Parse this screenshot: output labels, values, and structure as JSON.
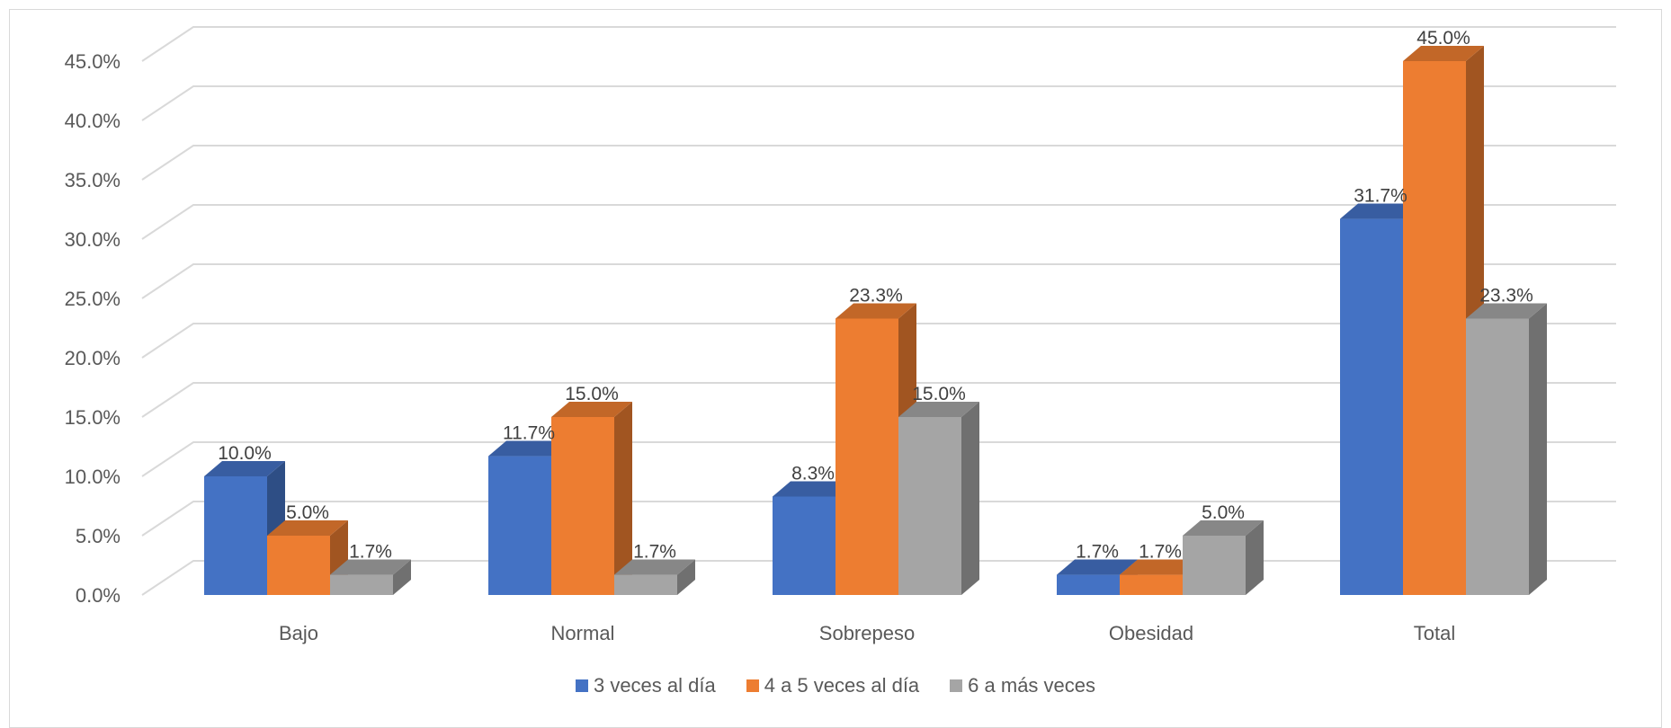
{
  "chart_data": {
    "type": "bar",
    "style": "3d-clustered-column",
    "title": "",
    "xlabel": "",
    "ylabel": "",
    "categories": [
      "Bajo",
      "Normal",
      "Sobrepeso",
      "Obesidad",
      "Total"
    ],
    "series": [
      {
        "name": "3 veces al día",
        "color": "#4472C4",
        "values": [
          10.0,
          11.7,
          8.3,
          1.7,
          31.7
        ],
        "labels": [
          "10.0%",
          "11.7%",
          "8.3%",
          "1.7%",
          "31.7%"
        ]
      },
      {
        "name": "4 a 5 veces al día",
        "color": "#ED7D31",
        "values": [
          5.0,
          15.0,
          23.3,
          1.7,
          45.0
        ],
        "labels": [
          "5.0%",
          "15.0%",
          "23.3%",
          "1.7%",
          "45.0%"
        ]
      },
      {
        "name": "6 a más veces",
        "color": "#A5A5A5",
        "values": [
          1.7,
          1.7,
          15.0,
          5.0,
          23.3
        ],
        "labels": [
          "1.7%",
          "1.7%",
          "15.0%",
          "5.0%",
          "23.3%"
        ]
      }
    ],
    "yticks": [
      "0.0%",
      "5.0%",
      "10.0%",
      "15.0%",
      "20.0%",
      "25.0%",
      "30.0%",
      "35.0%",
      "40.0%",
      "45.0%"
    ],
    "ylim": [
      0,
      45
    ],
    "grid": true,
    "legend": "bottom"
  }
}
